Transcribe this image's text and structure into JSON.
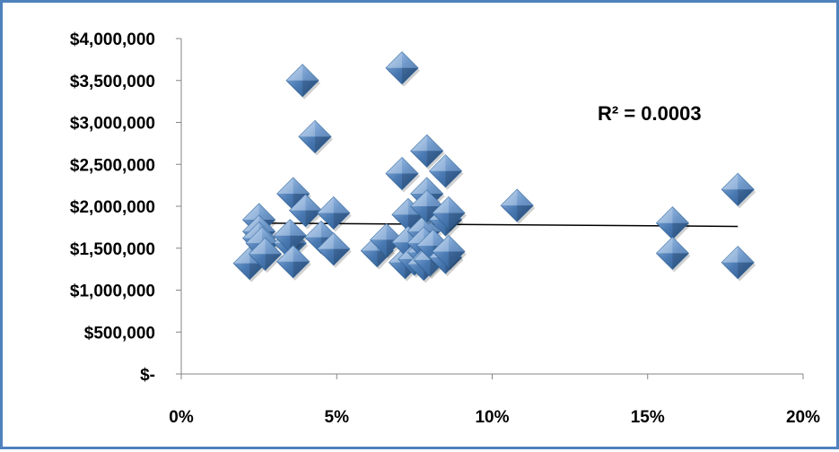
{
  "chart_data": {
    "type": "scatter",
    "title": "",
    "xlabel": "",
    "ylabel": "",
    "xlim": [
      0,
      20
    ],
    "ylim": [
      0,
      4000000
    ],
    "x_ticks": [
      0,
      5,
      10,
      15,
      20
    ],
    "x_tick_labels": [
      "0%",
      "5%",
      "10%",
      "15%",
      "20%"
    ],
    "y_ticks": [
      0,
      500000,
      1000000,
      1500000,
      2000000,
      2500000,
      3000000,
      3500000,
      4000000
    ],
    "y_tick_labels": [
      "$-",
      "$500,000",
      "$1,000,000",
      "$1,500,000",
      "$2,000,000",
      "$2,500,000",
      "$3,000,000",
      "$3,500,000",
      "$4,000,000"
    ],
    "grid": false,
    "legend": "none",
    "marker": "diamond",
    "marker_color": "#4F81BD",
    "series": [
      {
        "points": [
          [
            2.2,
            1320000
          ],
          [
            2.5,
            1840000
          ],
          [
            2.5,
            1700000
          ],
          [
            2.5,
            1620000
          ],
          [
            2.6,
            1560000
          ],
          [
            2.7,
            1430000
          ],
          [
            3.5,
            1560000
          ],
          [
            3.5,
            1650000
          ],
          [
            3.6,
            1340000
          ],
          [
            3.6,
            2150000
          ],
          [
            3.9,
            3500000
          ],
          [
            4.0,
            1950000
          ],
          [
            4.3,
            2830000
          ],
          [
            4.5,
            1630000
          ],
          [
            4.9,
            1920000
          ],
          [
            4.9,
            1490000
          ],
          [
            6.3,
            1470000
          ],
          [
            6.6,
            1600000
          ],
          [
            7.1,
            3650000
          ],
          [
            7.1,
            2390000
          ],
          [
            7.2,
            1330000
          ],
          [
            7.3,
            1900000
          ],
          [
            7.3,
            1570000
          ],
          [
            7.5,
            1370000
          ],
          [
            7.8,
            1700000
          ],
          [
            7.8,
            1450000
          ],
          [
            7.8,
            1560000
          ],
          [
            7.8,
            1310000
          ],
          [
            7.9,
            2660000
          ],
          [
            7.9,
            2150000
          ],
          [
            7.9,
            2000000
          ],
          [
            8.0,
            1360000
          ],
          [
            8.1,
            1530000
          ],
          [
            8.5,
            2420000
          ],
          [
            8.5,
            1840000
          ],
          [
            8.6,
            1920000
          ],
          [
            8.5,
            1390000
          ],
          [
            8.6,
            1460000
          ],
          [
            10.8,
            2010000
          ],
          [
            15.8,
            1800000
          ],
          [
            15.8,
            1440000
          ],
          [
            17.9,
            2200000
          ],
          [
            17.9,
            1330000
          ]
        ]
      }
    ],
    "trendline": {
      "type": "linear",
      "x": [
        2.2,
        17.9
      ],
      "y": [
        1800000,
        1760000
      ]
    },
    "annotation": {
      "text": "R² = 0.0003"
    }
  }
}
